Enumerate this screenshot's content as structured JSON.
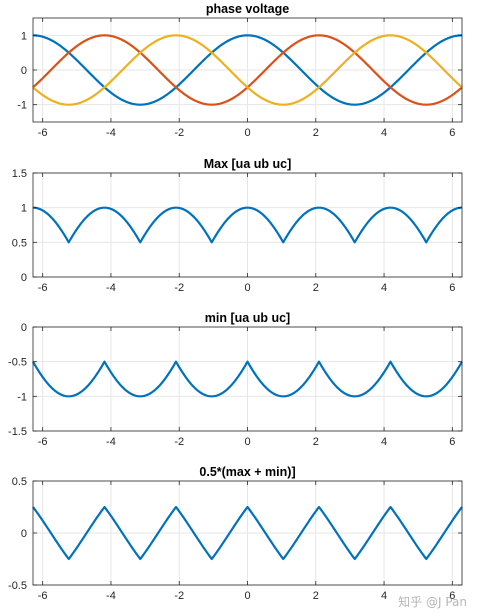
{
  "watermark": "知乎 @J Pan",
  "colors": {
    "ua": "#0072BD",
    "ub": "#D95319",
    "uc": "#EDB120",
    "grid": "#e6e6e6",
    "axis": "#262626"
  },
  "chart_data": [
    {
      "type": "line",
      "title": "phase voltage",
      "xlim": [
        -6.2832,
        6.2832
      ],
      "ylim": [
        -1.5,
        1.5
      ],
      "xticks": [
        -6,
        -4,
        -2,
        0,
        2,
        4,
        6
      ],
      "xtick_labels": [
        "-6",
        "-4",
        "-2",
        "0",
        "2",
        "4",
        "6"
      ],
      "yticks": [
        -1,
        0,
        1
      ],
      "ytick_labels": [
        "-1",
        "0",
        "1"
      ],
      "grid": true,
      "x_samples": 361,
      "series": [
        {
          "key": "ua",
          "expr": "cos(x)",
          "color": "#0072BD"
        },
        {
          "key": "ub",
          "expr": "cos(x - 2π/3)",
          "color": "#D95319"
        },
        {
          "key": "uc",
          "expr": "cos(x + 2π/3)",
          "color": "#EDB120"
        }
      ]
    },
    {
      "type": "line",
      "title": "Max [ua ub uc]",
      "xlim": [
        -6.2832,
        6.2832
      ],
      "ylim": [
        0,
        1.5
      ],
      "xticks": [
        -6,
        -4,
        -2,
        0,
        2,
        4,
        6
      ],
      "xtick_labels": [
        "-6",
        "-4",
        "-2",
        "0",
        "2",
        "4",
        "6"
      ],
      "yticks": [
        0,
        0.5,
        1,
        1.5
      ],
      "ytick_labels": [
        "0",
        "0.5",
        "1",
        "1.5"
      ],
      "grid": true,
      "x_samples": 361,
      "series": [
        {
          "key": "max",
          "expr": "max(ua, ub, uc)",
          "color": "#0072BD"
        }
      ]
    },
    {
      "type": "line",
      "title": "min [ua ub uc]",
      "xlim": [
        -6.2832,
        6.2832
      ],
      "ylim": [
        -1.5,
        0
      ],
      "xticks": [
        -6,
        -4,
        -2,
        0,
        2,
        4,
        6
      ],
      "xtick_labels": [
        "-6",
        "-4",
        "-2",
        "0",
        "2",
        "4",
        "6"
      ],
      "yticks": [
        -1.5,
        -1,
        -0.5,
        0
      ],
      "ytick_labels": [
        "-1.5",
        "-1",
        "-0.5",
        "0"
      ],
      "grid": true,
      "x_samples": 361,
      "series": [
        {
          "key": "min",
          "expr": "min(ua, ub, uc)",
          "color": "#0072BD"
        }
      ]
    },
    {
      "type": "line",
      "title": "0.5*(max + min)]",
      "xlim": [
        -6.2832,
        6.2832
      ],
      "ylim": [
        -0.5,
        0.5
      ],
      "xticks": [
        -6,
        -4,
        -2,
        0,
        2,
        4,
        6
      ],
      "xtick_labels": [
        "-6",
        "-4",
        "-2",
        "0",
        "2",
        "4",
        "6"
      ],
      "yticks": [
        -0.5,
        0,
        0.5
      ],
      "ytick_labels": [
        "-0.5",
        "0",
        "0.5"
      ],
      "grid": true,
      "x_samples": 361,
      "series": [
        {
          "key": "mid",
          "expr": "0.5*(max + min)",
          "color": "#0072BD"
        }
      ]
    }
  ]
}
